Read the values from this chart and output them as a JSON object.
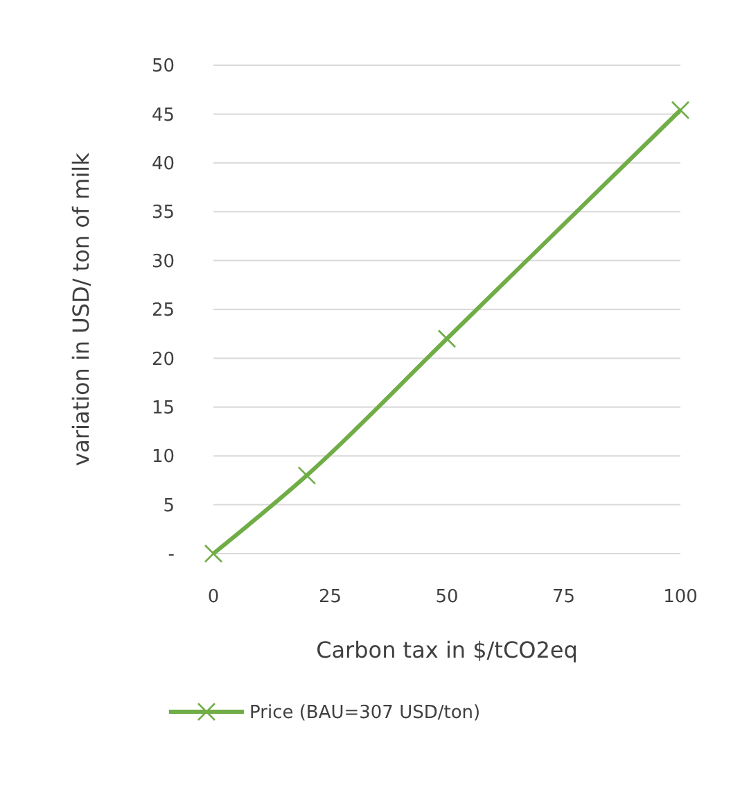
{
  "chart_data": {
    "type": "line",
    "xlabel": "Carbon tax in $/tCO2eq",
    "ylabel": "variation in USD/ ton of milk",
    "x": [
      0,
      20,
      50,
      100
    ],
    "series": [
      {
        "name": "Price (BAU=307 USD/ton)",
        "color": "#70ad47",
        "values": [
          0,
          8,
          22,
          45.4
        ]
      }
    ],
    "xlim": [
      0,
      100
    ],
    "xticks": [
      0,
      25,
      50,
      75,
      100
    ],
    "ylim": [
      0,
      50
    ],
    "yticks": [
      {
        "value": 0,
        "label": "-"
      },
      5,
      10,
      15,
      20,
      25,
      30,
      35,
      40,
      45,
      50
    ],
    "grid": "y",
    "legend": "bottom",
    "marker": "cross",
    "line_style": "solid"
  }
}
